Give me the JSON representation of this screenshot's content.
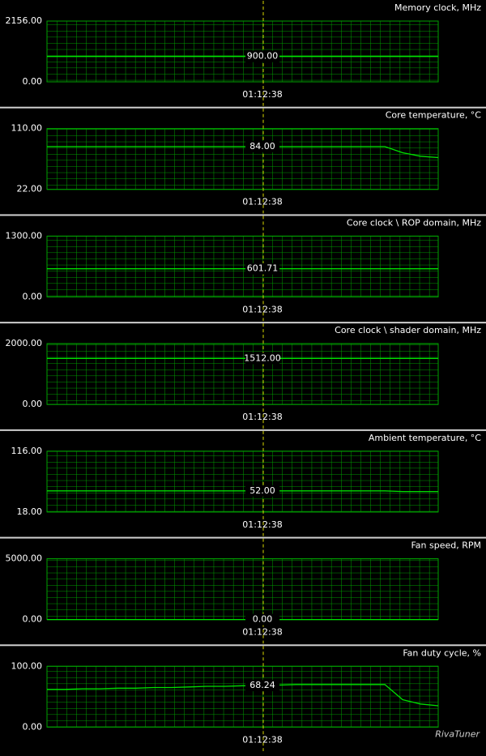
{
  "chart_data": [
    {
      "type": "line",
      "title": "Memory clock, MHz",
      "ylim": [
        0,
        2156
      ],
      "yticks": [
        {
          "value": 0,
          "label": "0.00"
        },
        {
          "value": 2156,
          "label": "2156.00"
        }
      ],
      "color": "#00e000",
      "values": [
        900,
        900,
        900,
        900,
        900,
        900,
        900,
        900,
        900,
        900,
        900,
        900,
        900,
        900,
        900,
        900,
        900,
        900,
        900,
        900,
        900,
        900,
        900
      ],
      "cursor": {
        "time": "01:12:38",
        "value": 900,
        "label": "900.00"
      }
    },
    {
      "type": "line",
      "title": "Core temperature, °C",
      "ylim": [
        22,
        110
      ],
      "yticks": [
        {
          "value": 22,
          "label": "22.00"
        },
        {
          "value": 110,
          "label": "110.00"
        }
      ],
      "color": "#00e000",
      "values": [
        84,
        84,
        84,
        84,
        84,
        84,
        84,
        84,
        84,
        84,
        84,
        84,
        84,
        84,
        84,
        84,
        84,
        84,
        84,
        84,
        75,
        70,
        68
      ],
      "cursor": {
        "time": "01:12:38",
        "value": 84,
        "label": "84.00"
      }
    },
    {
      "type": "line",
      "title": "Core clock \\ ROP domain, MHz",
      "ylim": [
        0,
        1300
      ],
      "yticks": [
        {
          "value": 0,
          "label": "0.00"
        },
        {
          "value": 1300,
          "label": "1300.00"
        }
      ],
      "color": "#00e000",
      "values": [
        601.71,
        601.71,
        601.71,
        601.71,
        601.71,
        601.71,
        601.71,
        601.71,
        601.71,
        601.71,
        601.71,
        601.71,
        601.71,
        601.71,
        601.71,
        601.71,
        601.71,
        601.71,
        601.71,
        601.71,
        601.71,
        601.71,
        601.71
      ],
      "cursor": {
        "time": "01:12:38",
        "value": 601.71,
        "label": "601.71"
      }
    },
    {
      "type": "line",
      "title": "Core clock \\ shader domain, MHz",
      "ylim": [
        0,
        2000
      ],
      "yticks": [
        {
          "value": 0,
          "label": "0.00"
        },
        {
          "value": 2000,
          "label": "2000.00"
        }
      ],
      "color": "#00e000",
      "values": [
        1512,
        1512,
        1512,
        1512,
        1512,
        1512,
        1512,
        1512,
        1512,
        1512,
        1512,
        1512,
        1512,
        1512,
        1512,
        1512,
        1512,
        1512,
        1512,
        1512,
        1512,
        1512,
        1512
      ],
      "cursor": {
        "time": "01:12:38",
        "value": 1512,
        "label": "1512.00"
      }
    },
    {
      "type": "line",
      "title": "Ambient temperature, °C",
      "ylim": [
        18,
        116
      ],
      "yticks": [
        {
          "value": 18,
          "label": "18.00"
        },
        {
          "value": 116,
          "label": "116.00"
        }
      ],
      "color": "#00e000",
      "values": [
        52,
        52,
        52,
        52,
        52,
        52,
        52,
        52,
        52,
        52,
        52,
        52,
        52,
        52,
        52,
        52,
        52,
        52,
        52,
        52,
        51,
        51,
        51
      ],
      "cursor": {
        "time": "01:12:38",
        "value": 52,
        "label": "52.00"
      }
    },
    {
      "type": "line",
      "title": "Fan speed, RPM",
      "ylim": [
        0,
        5000
      ],
      "yticks": [
        {
          "value": 0,
          "label": "0.00"
        },
        {
          "value": 5000,
          "label": "5000.00"
        }
      ],
      "color": "#00e000",
      "values": [
        0,
        0,
        0,
        0,
        0,
        0,
        0,
        0,
        0,
        0,
        0,
        0,
        0,
        0,
        0,
        0,
        0,
        0,
        0,
        0,
        0,
        0,
        0
      ],
      "cursor": {
        "time": "01:12:38",
        "value": 0,
        "label": "0.00"
      }
    },
    {
      "type": "line",
      "title": "Fan duty cycle, %",
      "ylim": [
        0,
        100
      ],
      "yticks": [
        {
          "value": 0,
          "label": "0.00"
        },
        {
          "value": 100,
          "label": "100.00"
        }
      ],
      "color": "#00e000",
      "values": [
        62,
        62,
        63,
        63,
        64,
        64,
        65,
        65,
        66,
        67,
        67,
        68,
        68,
        69,
        70,
        70,
        70,
        70,
        70,
        70,
        45,
        38,
        35
      ],
      "cursor": {
        "time": "01:12:38",
        "value": 68.24,
        "label": "68.24"
      },
      "watermark": "RivaTuner"
    }
  ]
}
